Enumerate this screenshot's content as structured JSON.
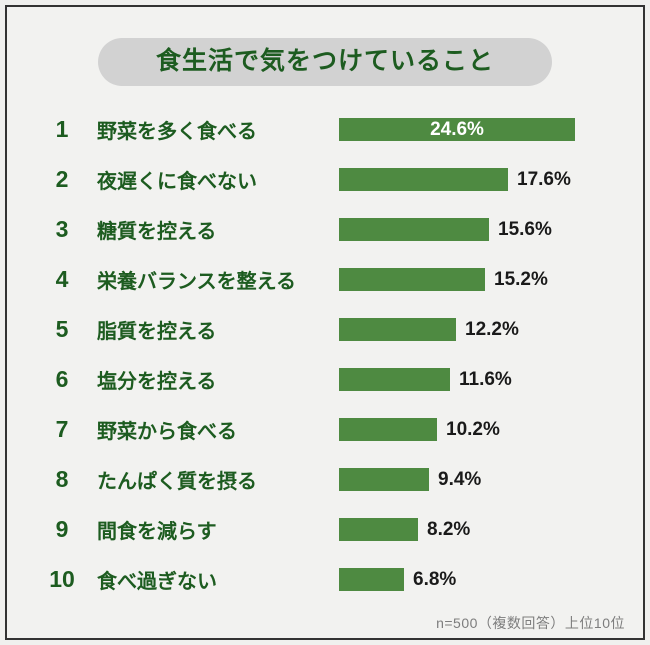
{
  "title": {
    "text": "食生活で気をつけていること",
    "pill_bg": "#d2d2d2",
    "text_color": "#1d5c20"
  },
  "chart_data": {
    "type": "bar",
    "orientation": "horizontal",
    "title": "食生活で気をつけていること",
    "unit": "%",
    "ranks": [
      "1",
      "2",
      "3",
      "4",
      "5",
      "6",
      "7",
      "8",
      "9",
      "10"
    ],
    "categories": [
      "野菜を多く食べる",
      "夜遅くに食べない",
      "糖質を控える",
      "栄養バランスを整える",
      "脂質を控える",
      "塩分を控える",
      "野菜から食べる",
      "たんぱく質を摂る",
      "間食を減らす",
      "食べ過ぎない"
    ],
    "values": [
      24.6,
      17.6,
      15.6,
      15.2,
      12.2,
      11.6,
      10.2,
      9.4,
      8.2,
      6.8
    ],
    "value_labels": [
      "24.6%",
      "17.6%",
      "15.6%",
      "15.2%",
      "12.2%",
      "11.6%",
      "10.2%",
      "9.4%",
      "8.2%",
      "6.8%"
    ],
    "xlim": [
      0,
      25.6
    ],
    "grid": false,
    "legend": false,
    "bar_color": "#4e8a41",
    "label_color": "#1d5c20",
    "value_inside_index": 0
  },
  "footer": {
    "text": "n=500（複数回答）上位10位",
    "color": "#7d7d7d"
  }
}
